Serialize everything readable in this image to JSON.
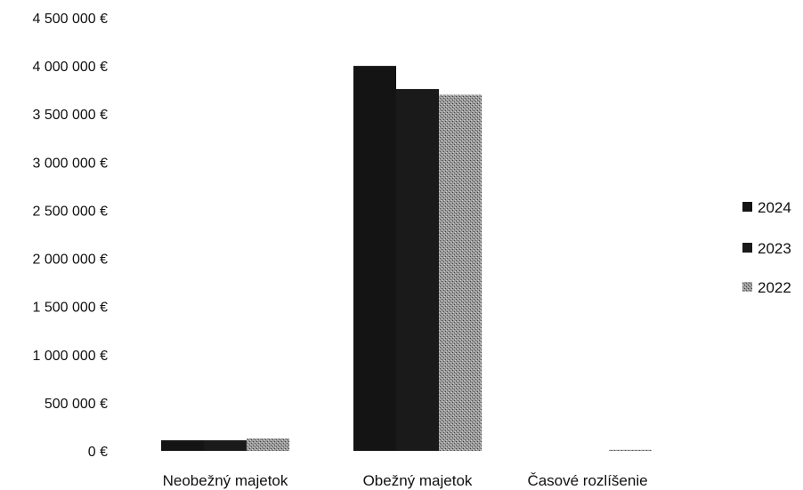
{
  "chart_data": {
    "type": "bar",
    "categories": [
      "Neobežný majetok",
      "Obežný majetok",
      "Časové rozlíšenie"
    ],
    "series": [
      {
        "name": "2024",
        "values": [
          110000,
          4000000,
          0
        ],
        "color": "#141414",
        "pattern": "solid"
      },
      {
        "name": "2023",
        "values": [
          110000,
          3760000,
          0
        ],
        "color": "#1a1a1a",
        "pattern": "solid"
      },
      {
        "name": "2022",
        "values": [
          130000,
          3700000,
          5000
        ],
        "color": "#8a8a8a",
        "pattern": "stipple"
      }
    ],
    "ylim": [
      0,
      4500000
    ],
    "yticks": [
      0,
      500000,
      1000000,
      1500000,
      2000000,
      2500000,
      3000000,
      3500000,
      4000000,
      4500000
    ],
    "ytick_labels": [
      "0 €",
      "500 000 €",
      "1 000 000 €",
      "1 500 000 €",
      "2 000 000 €",
      "2 500 000 €",
      "3 000 000 €",
      "3 500 000 €",
      "4 000 000 €",
      "4 500 000 €"
    ],
    "grid": false,
    "legend_position": "right"
  }
}
